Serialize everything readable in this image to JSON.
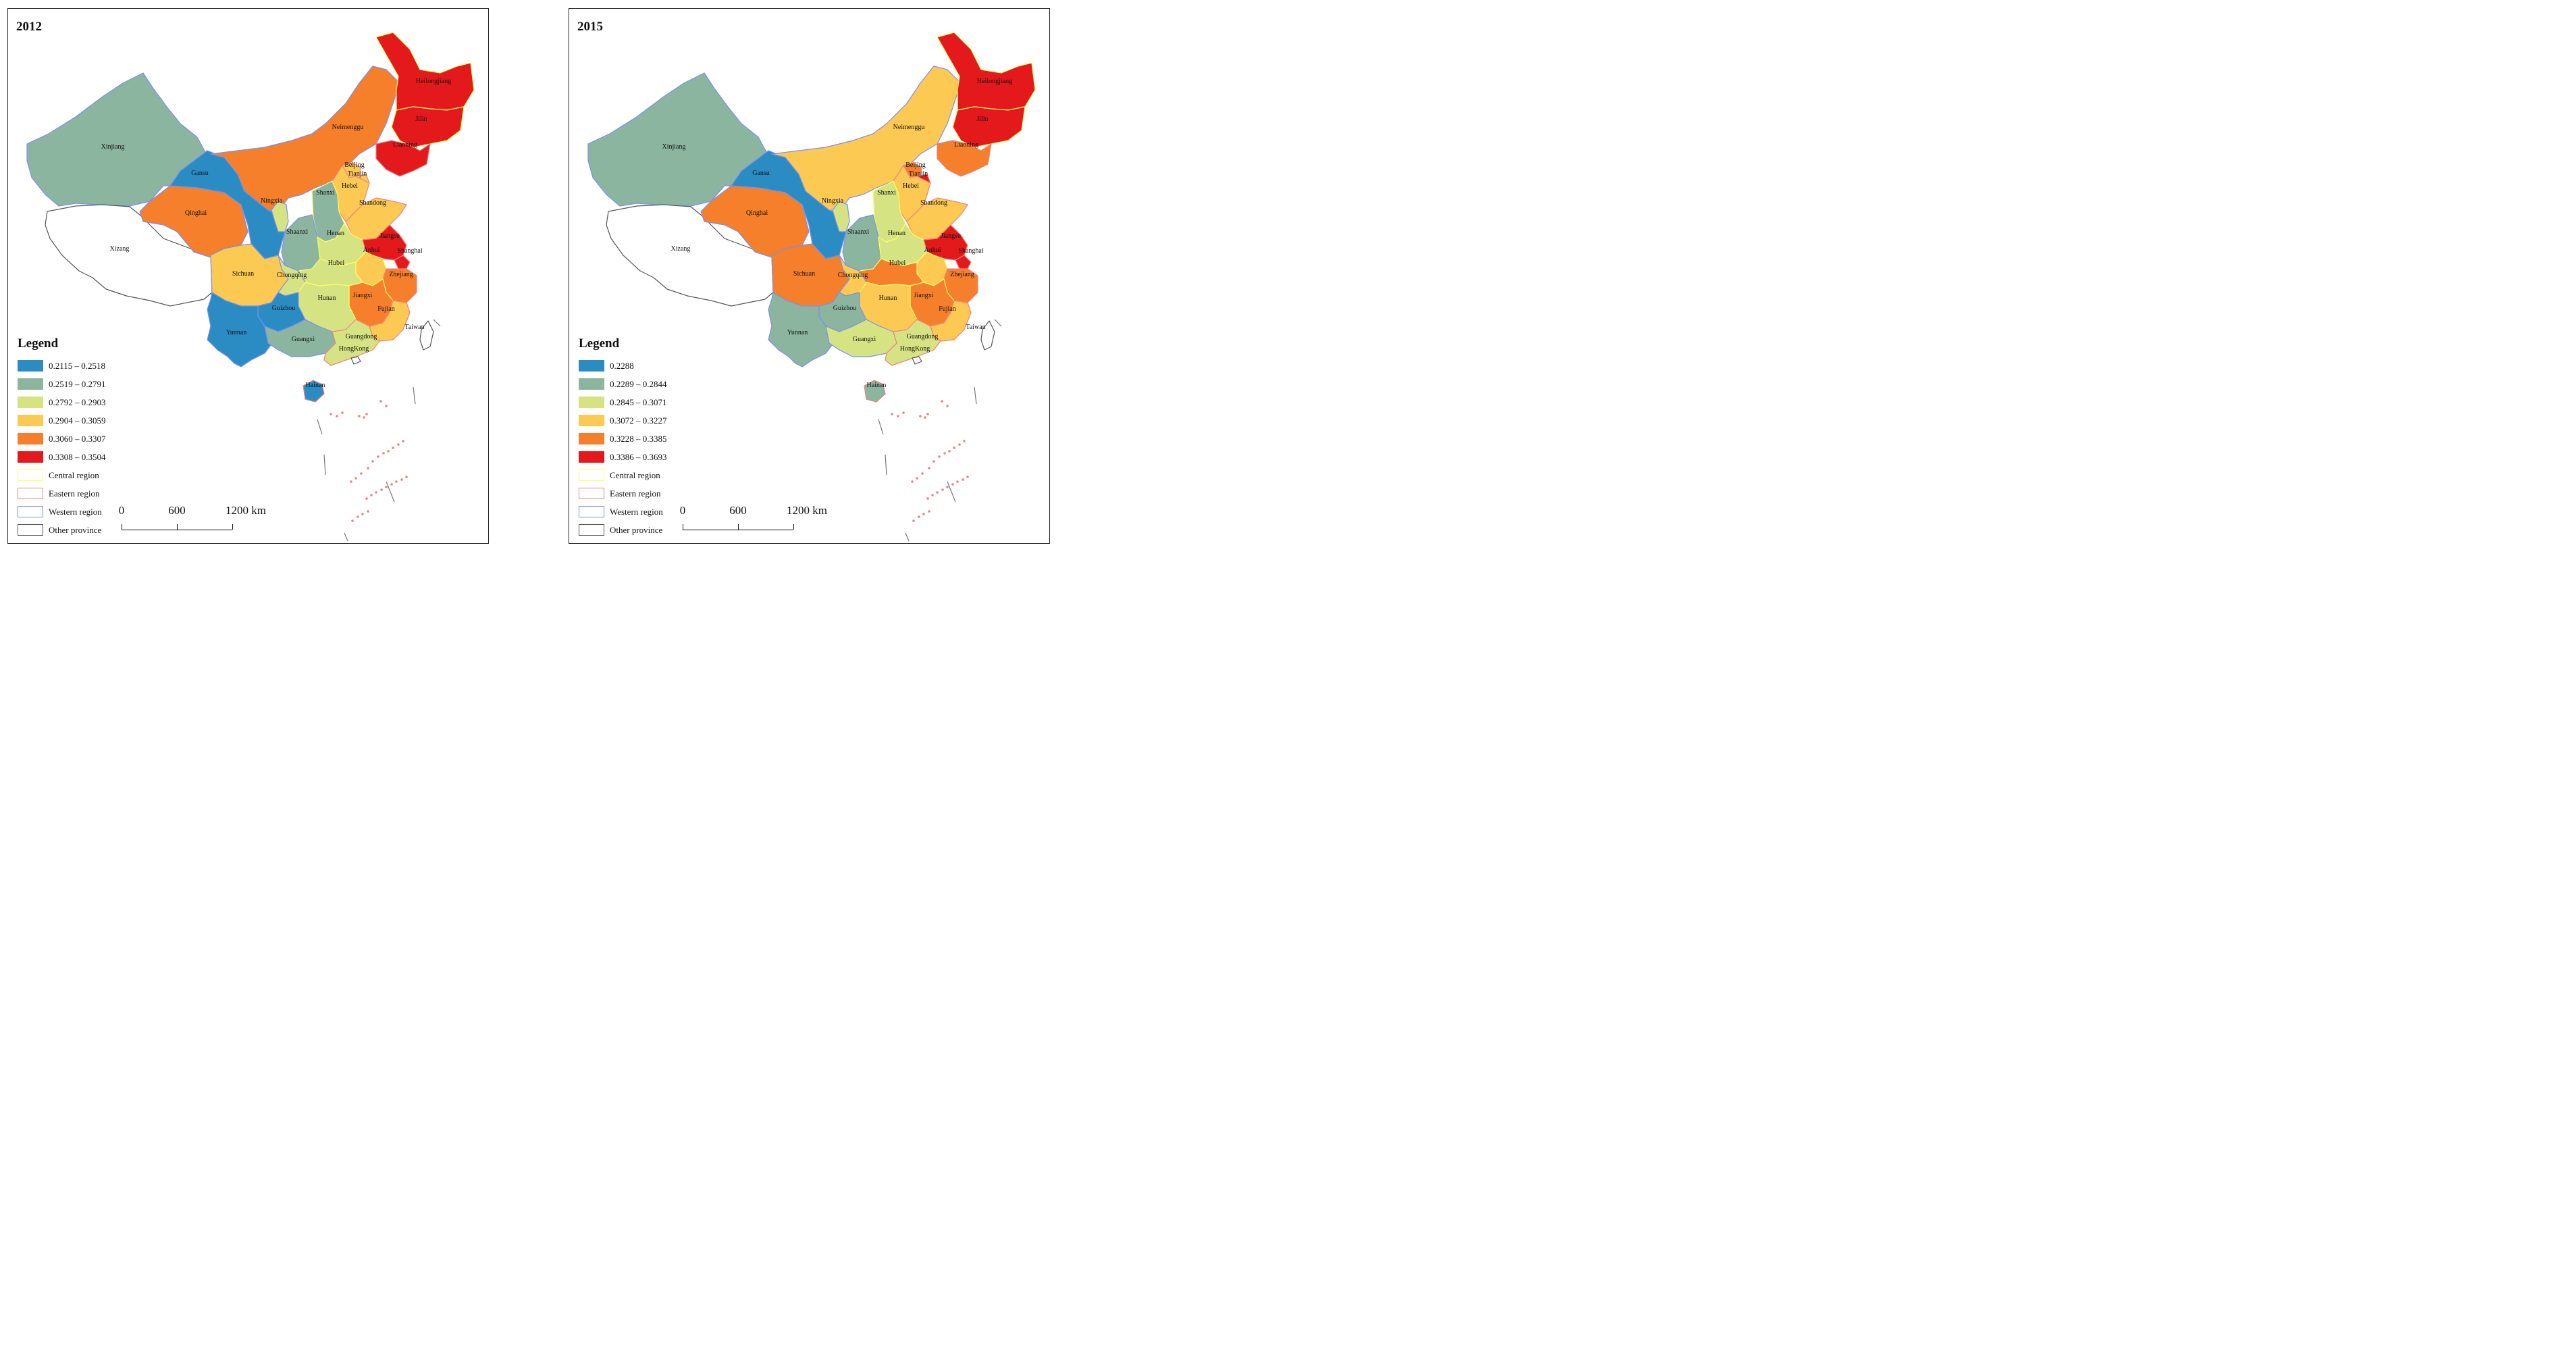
{
  "panels": [
    {
      "year": "2012",
      "legend": {
        "title": "Legend",
        "classes": [
          {
            "label": "0.2115 – 0.2518",
            "color": "#2b8cc4"
          },
          {
            "label": "0.2519 – 0.2791",
            "color": "#8cb5a0"
          },
          {
            "label": "0.2792 – 0.2903",
            "color": "#d6e383"
          },
          {
            "label": "0.2904 – 0.3059",
            "color": "#fcc953"
          },
          {
            "label": "0.3060 – 0.3307",
            "color": "#f57f2a"
          },
          {
            "label": "0.3308 – 0.3504",
            "color": "#e3191c"
          }
        ],
        "regions": [
          {
            "label": "Central region",
            "color": "#ffff66"
          },
          {
            "label": "Eastern region",
            "color": "#f08080"
          },
          {
            "label": "Western region",
            "color": "#7b8ff0"
          },
          {
            "label": "Other province",
            "color": "#555555"
          }
        ]
      },
      "scale": {
        "labels": [
          "0",
          "600",
          "1200 km"
        ]
      },
      "provinces": {
        "Xinjiang": 1,
        "Xizang": -1,
        "Qinghai": 4,
        "Gansu": 0,
        "Neimenggu": 4,
        "Heilongjiang": 5,
        "Jilin": 5,
        "Liaoning": 5,
        "Beijing": 3,
        "Tianjin": 3,
        "Hebei": 3,
        "Shanxi": 1,
        "Ningxia": 2,
        "Shaanxi": 1,
        "Shandong": 3,
        "Henan": 2,
        "Jiangsu": 5,
        "Shanghai": 5,
        "Anhui": 3,
        "Hubei": 2,
        "Sichuan": 3,
        "Chongqing": 2,
        "Zhejiang": 4,
        "Jiangxi": 4,
        "Hunan": 2,
        "Fujian": 3,
        "Guizhou": 0,
        "Yunnan": 0,
        "Guangxi": 1,
        "Guangdong": 2,
        "HongKong": -1,
        "Taiwan": -1,
        "Hainan": 0
      }
    },
    {
      "year": "2015",
      "legend": {
        "title": "Legend",
        "classes": [
          {
            "label": "0.2288",
            "color": "#2b8cc4"
          },
          {
            "label": "0.2289 – 0.2844",
            "color": "#8cb5a0"
          },
          {
            "label": "0.2845 – 0.3071",
            "color": "#d6e383"
          },
          {
            "label": "0.3072 – 0.3227",
            "color": "#fcc953"
          },
          {
            "label": "0.3228 – 0.3385",
            "color": "#f57f2a"
          },
          {
            "label": "0.3386 – 0.3693",
            "color": "#e3191c"
          }
        ],
        "regions": [
          {
            "label": "Central region",
            "color": "#ffff66"
          },
          {
            "label": "Eastern region",
            "color": "#f08080"
          },
          {
            "label": "Western region",
            "color": "#7b8ff0"
          },
          {
            "label": "Other province",
            "color": "#555555"
          }
        ]
      },
      "scale": {
        "labels": [
          "0",
          "600",
          "1200 km"
        ]
      },
      "provinces": {
        "Xinjiang": 1,
        "Xizang": -1,
        "Qinghai": 4,
        "Gansu": 0,
        "Neimenggu": 3,
        "Heilongjiang": 5,
        "Jilin": 5,
        "Liaoning": 4,
        "Beijing": 4,
        "Tianjin": 5,
        "Hebei": 3,
        "Shanxi": 2,
        "Ningxia": 2,
        "Shaanxi": 1,
        "Shandong": 3,
        "Henan": 2,
        "Jiangsu": 5,
        "Shanghai": 5,
        "Anhui": 3,
        "Hubei": 4,
        "Sichuan": 4,
        "Chongqing": 3,
        "Zhejiang": 4,
        "Jiangxi": 4,
        "Hunan": 3,
        "Fujian": 3,
        "Guizhou": 1,
        "Yunnan": 1,
        "Guangxi": 2,
        "Guangdong": 2,
        "HongKong": -1,
        "Taiwan": -1,
        "Hainan": 1
      }
    }
  ]
}
